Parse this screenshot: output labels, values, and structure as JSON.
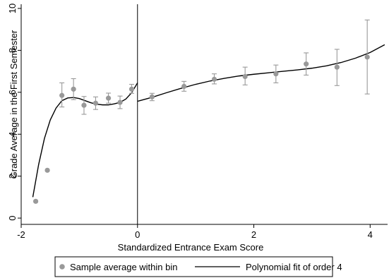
{
  "chart_data": {
    "type": "scatter",
    "xlabel": "Standardized Entrance Exam Score",
    "ylabel": "Grade Average in the First Semester",
    "xlim": [
      -2,
      4.3
    ],
    "ylim": [
      -0.3,
      10.2
    ],
    "x_ticks": [
      {
        "value": -2,
        "label": "-2"
      },
      {
        "value": 0,
        "label": "0"
      },
      {
        "value": 2,
        "label": "2"
      },
      {
        "value": 4,
        "label": "4"
      }
    ],
    "y_ticks": [
      {
        "value": 0,
        "label": "0"
      },
      {
        "value": 2,
        "label": "2"
      },
      {
        "value": 4,
        "label": "4"
      },
      {
        "value": 6,
        "label": "6"
      },
      {
        "value": 8,
        "label": "8"
      },
      {
        "value": 10,
        "label": "10"
      }
    ],
    "cutoff": 0,
    "colors": {
      "points": "#999999",
      "error_bars": "#999999",
      "fit_line": "#000000",
      "cutoff_line": "#000000"
    },
    "series": [
      {
        "name": "Sample average within bin",
        "type": "scatter",
        "points": [
          {
            "x": -1.75,
            "y": 0.8
          },
          {
            "x": -1.55,
            "y": 2.28
          },
          {
            "x": -1.3,
            "y": 5.85,
            "lo": 5.3,
            "hi": 6.45
          },
          {
            "x": -1.1,
            "y": 6.15,
            "lo": 5.65,
            "hi": 6.65
          },
          {
            "x": -0.92,
            "y": 5.38,
            "lo": 4.95,
            "hi": 5.8
          },
          {
            "x": -0.72,
            "y": 5.48,
            "lo": 5.18,
            "hi": 5.78
          },
          {
            "x": -0.5,
            "y": 5.72,
            "lo": 5.48,
            "hi": 5.96
          },
          {
            "x": -0.3,
            "y": 5.52,
            "lo": 5.22,
            "hi": 5.82
          },
          {
            "x": -0.1,
            "y": 6.15,
            "lo": 5.95,
            "hi": 6.38
          },
          {
            "x": 0.25,
            "y": 5.78,
            "lo": 5.6,
            "hi": 5.95
          },
          {
            "x": 0.8,
            "y": 6.28,
            "lo": 6.05,
            "hi": 6.52
          },
          {
            "x": 1.32,
            "y": 6.62,
            "lo": 6.4,
            "hi": 6.88
          },
          {
            "x": 1.85,
            "y": 6.75,
            "lo": 6.35,
            "hi": 7.2
          },
          {
            "x": 2.38,
            "y": 6.88,
            "lo": 6.45,
            "hi": 7.3
          },
          {
            "x": 2.9,
            "y": 7.35,
            "lo": 6.82,
            "hi": 7.88
          },
          {
            "x": 3.43,
            "y": 7.2,
            "lo": 6.32,
            "hi": 8.05
          },
          {
            "x": 3.95,
            "y": 7.68,
            "lo": 5.92,
            "hi": 9.45
          }
        ]
      },
      {
        "name": "Polynomial fit of order 4",
        "type": "line",
        "segments": [
          [
            {
              "x": -1.8,
              "y": 1.0
            },
            {
              "x": -1.7,
              "y": 2.55
            },
            {
              "x": -1.6,
              "y": 3.8
            },
            {
              "x": -1.5,
              "y": 4.68
            },
            {
              "x": -1.4,
              "y": 5.25
            },
            {
              "x": -1.3,
              "y": 5.6
            },
            {
              "x": -1.2,
              "y": 5.73
            },
            {
              "x": -1.1,
              "y": 5.75
            },
            {
              "x": -1.0,
              "y": 5.7
            },
            {
              "x": -0.9,
              "y": 5.6
            },
            {
              "x": -0.8,
              "y": 5.5
            },
            {
              "x": -0.7,
              "y": 5.43
            },
            {
              "x": -0.6,
              "y": 5.4
            },
            {
              "x": -0.5,
              "y": 5.4
            },
            {
              "x": -0.4,
              "y": 5.45
            },
            {
              "x": -0.3,
              "y": 5.52
            },
            {
              "x": -0.2,
              "y": 5.68
            },
            {
              "x": -0.1,
              "y": 5.98
            },
            {
              "x": 0.0,
              "y": 6.45
            }
          ],
          [
            {
              "x": 0.0,
              "y": 5.57
            },
            {
              "x": 0.25,
              "y": 5.76
            },
            {
              "x": 0.5,
              "y": 5.98
            },
            {
              "x": 0.75,
              "y": 6.19
            },
            {
              "x": 1.0,
              "y": 6.38
            },
            {
              "x": 1.25,
              "y": 6.54
            },
            {
              "x": 1.5,
              "y": 6.67
            },
            {
              "x": 1.75,
              "y": 6.78
            },
            {
              "x": 2.0,
              "y": 6.86
            },
            {
              "x": 2.25,
              "y": 6.93
            },
            {
              "x": 2.5,
              "y": 7.0
            },
            {
              "x": 2.75,
              "y": 7.07
            },
            {
              "x": 3.0,
              "y": 7.15
            },
            {
              "x": 3.25,
              "y": 7.26
            },
            {
              "x": 3.5,
              "y": 7.42
            },
            {
              "x": 3.75,
              "y": 7.63
            },
            {
              "x": 4.0,
              "y": 7.9
            },
            {
              "x": 4.25,
              "y": 8.27
            }
          ]
        ]
      }
    ],
    "legend": {
      "position": "bottom",
      "items": [
        {
          "label": "Sample average within bin",
          "symbol": "dot"
        },
        {
          "label": "Polynomial fit of order 4",
          "symbol": "line"
        }
      ]
    }
  }
}
